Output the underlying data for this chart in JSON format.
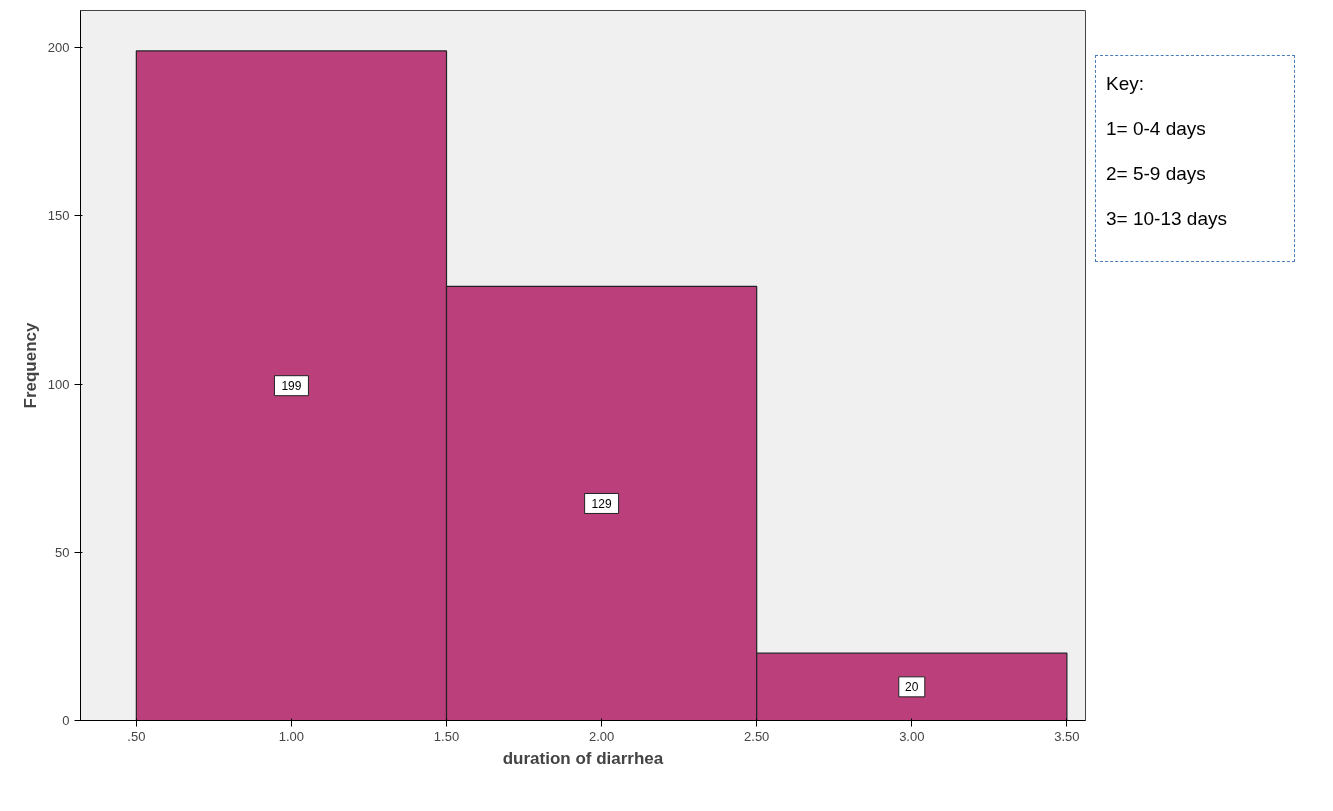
{
  "chart_data": {
    "type": "histogram",
    "xlabel": "duration of diarrhea",
    "ylabel": "Frequency",
    "bins": [
      0.5,
      1.5,
      2.5,
      3.5
    ],
    "values": [
      199,
      129,
      20
    ],
    "color": "#bb3f7b",
    "data_labels": true,
    "grid": false,
    "xlim": [
      0.32,
      3.56
    ],
    "ylim": [
      0,
      211
    ],
    "xticks": [
      {
        "value": 0.5,
        "label": ".50"
      },
      {
        "value": 1.0,
        "label": "1.00"
      },
      {
        "value": 1.5,
        "label": "1.50"
      },
      {
        "value": 2.0,
        "label": "2.00"
      },
      {
        "value": 2.5,
        "label": "2.50"
      },
      {
        "value": 3.0,
        "label": "3.00"
      },
      {
        "value": 3.5,
        "label": "3.50"
      }
    ],
    "yticks": [
      0,
      50,
      100,
      150,
      200
    ],
    "annotations": [
      "Key:",
      "1= 0-4 days",
      "2= 5-9 days",
      "3= 10-13 days"
    ]
  }
}
